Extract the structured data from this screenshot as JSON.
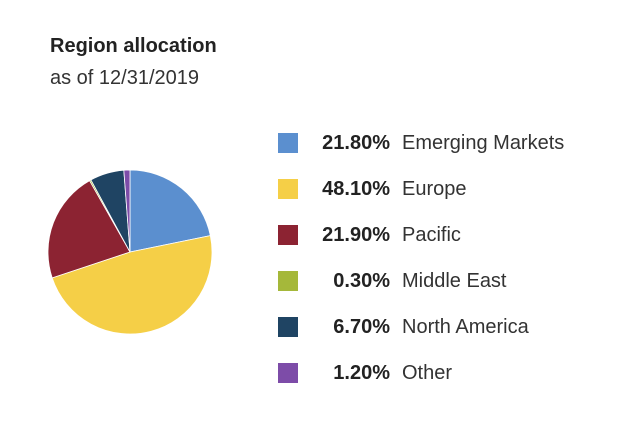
{
  "title": "Region allocation",
  "subtitle": "as of 12/31/2019",
  "chart_data": {
    "type": "pie",
    "title": "Region allocation",
    "subtitle": "as of 12/31/2019",
    "legend_position": "right",
    "categories": [
      "Emerging Markets",
      "Europe",
      "Pacific",
      "Middle East",
      "North America",
      "Other"
    ],
    "values": [
      21.8,
      48.1,
      21.9,
      0.3,
      6.7,
      1.2
    ],
    "value_labels": [
      "21.80%",
      "48.10%",
      "21.90%",
      "0.30%",
      "6.70%",
      "1.20%"
    ],
    "colors": [
      "#5B8FCF",
      "#F5CF47",
      "#8C2332",
      "#A5B83A",
      "#1F4463",
      "#7D4CA8"
    ]
  }
}
